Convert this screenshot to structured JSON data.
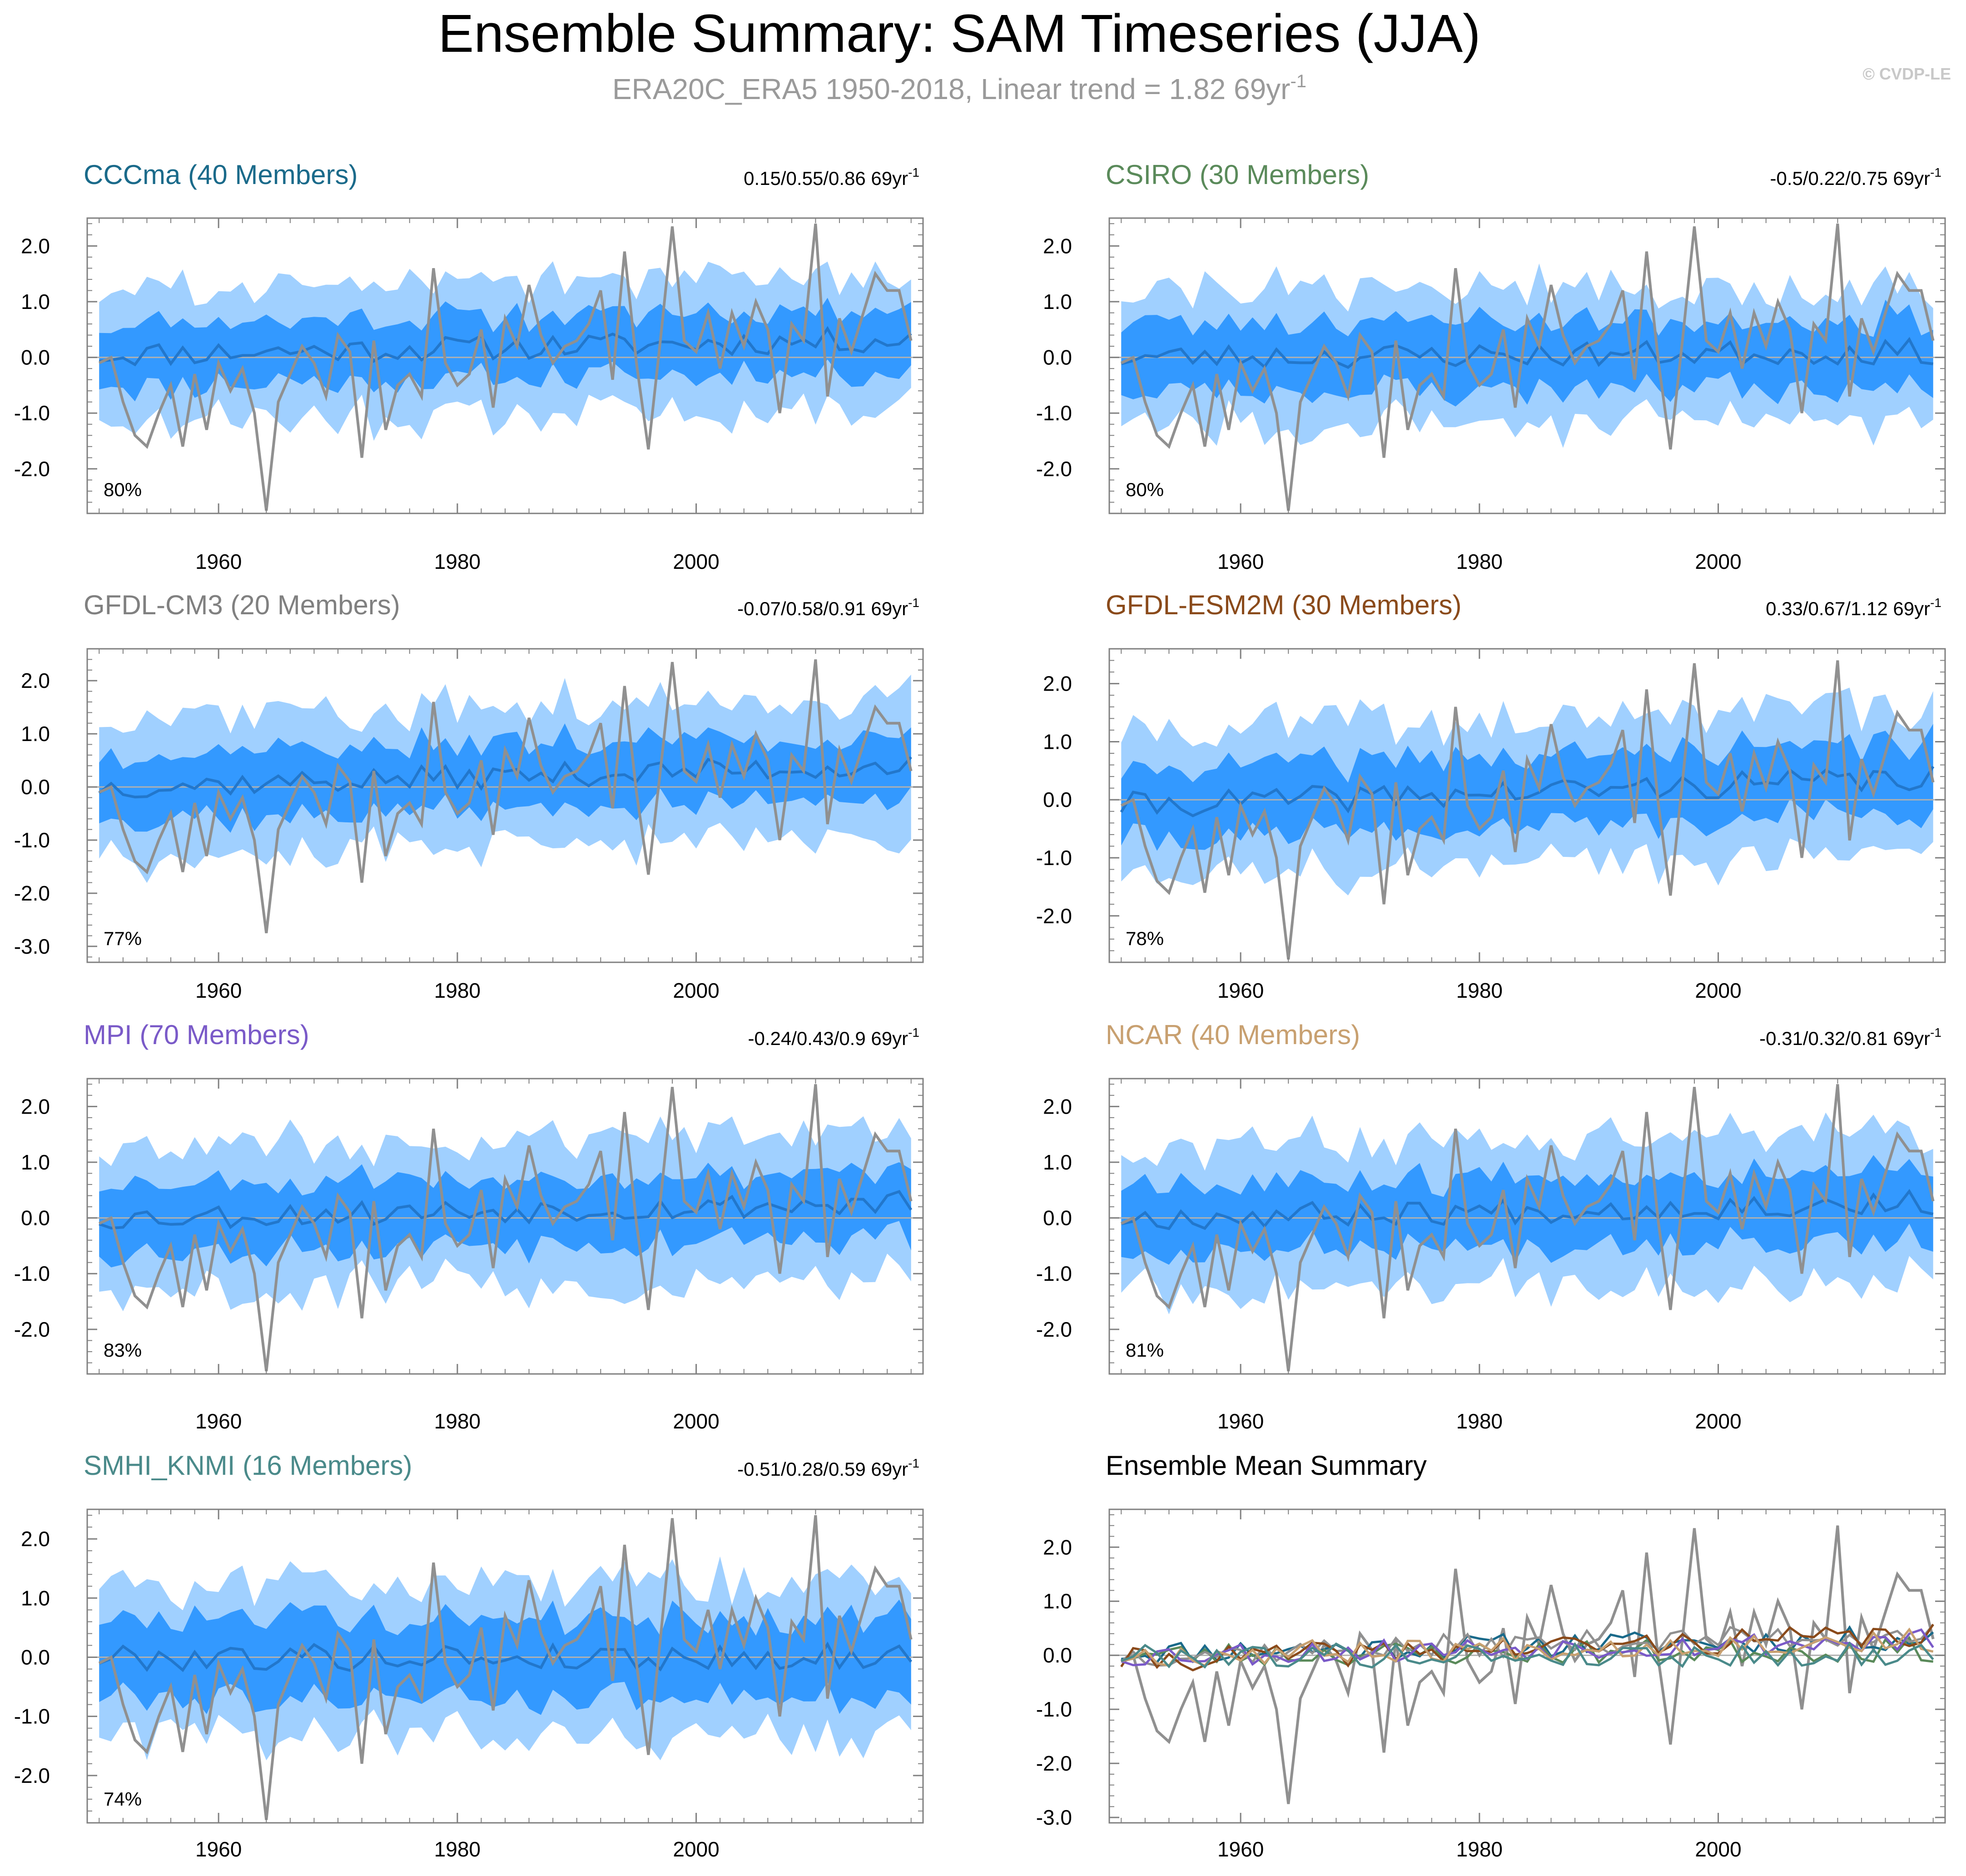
{
  "figure": {
    "title": "Ensemble Summary: SAM Timeseries (JJA)",
    "subtitle": "ERA20C_ERA5 1950-2018, Linear trend = 1.82 69yr",
    "subtitle_sup": "-1",
    "copyright": "© CVDP-LE"
  },
  "colors": {
    "outer_band": "#a0d0ff",
    "inner_band": "#3399ff",
    "ensemble_mean": "#2277cc",
    "observations": "#909090",
    "zero_line": "#b0b0b0",
    "axis": "#808080"
  },
  "chart_data": [
    {
      "type": "area",
      "id": "cccma",
      "title": "CCCma (40 Members)",
      "title_color": "#1a6a8a",
      "trend": "0.15/0.55/0.86 69yr",
      "trend_sup": "-1",
      "percent": "80%",
      "x_ticks": [
        "1960",
        "1980",
        "2000"
      ],
      "y_ticks": [
        "2.0",
        "1.0",
        "0.0",
        "-1.0",
        "-2.0"
      ],
      "ylim": [
        -2.8,
        2.5
      ],
      "xlim": [
        1949,
        2019
      ],
      "mean_offset": 0.05,
      "mean_slope": 0.004,
      "inner_half": 0.55,
      "outer_half": 1.15,
      "seed": 11
    },
    {
      "type": "area",
      "id": "csiro",
      "title": "CSIRO (30 Members)",
      "title_color": "#5a8a5a",
      "trend": "-0.5/0.22/0.75 69yr",
      "trend_sup": "-1",
      "percent": "80%",
      "x_ticks": [
        "1960",
        "1980",
        "2000"
      ],
      "y_ticks": [
        "2.0",
        "1.0",
        "0.0",
        "-1.0",
        "-2.0"
      ],
      "ylim": [
        -2.8,
        2.5
      ],
      "xlim": [
        1949,
        2019
      ],
      "mean_offset": 0.0,
      "mean_slope": 0.0015,
      "inner_half": 0.6,
      "outer_half": 1.2,
      "seed": 23
    },
    {
      "type": "area",
      "id": "gfdl-cm3",
      "title": "GFDL-CM3 (20 Members)",
      "title_color": "#808080",
      "trend": "-0.07/0.58/0.91 69yr",
      "trend_sup": "-1",
      "percent": "77%",
      "x_ticks": [
        "1960",
        "1980",
        "2000"
      ],
      "y_ticks": [
        "2.0",
        "1.0",
        "0.0",
        "-1.0",
        "-2.0",
        "-3.0"
      ],
      "ylim": [
        -3.3,
        2.6
      ],
      "xlim": [
        1949,
        2019
      ],
      "mean_offset": 0.0,
      "mean_slope": 0.006,
      "inner_half": 0.6,
      "outer_half": 1.3,
      "seed": 37
    },
    {
      "type": "area",
      "id": "gfdl-esm2m",
      "title": "GFDL-ESM2M (30 Members)",
      "title_color": "#8a4a1a",
      "trend": "0.33/0.67/1.12 69yr",
      "trend_sup": "-1",
      "percent": "78%",
      "x_ticks": [
        "1960",
        "1980",
        "2000"
      ],
      "y_ticks": [
        "2.0",
        "1.0",
        "0.0",
        "-1.0",
        "-2.0"
      ],
      "ylim": [
        -2.8,
        2.6
      ],
      "xlim": [
        1949,
        2019
      ],
      "mean_offset": -0.1,
      "mean_slope": 0.007,
      "inner_half": 0.6,
      "outer_half": 1.25,
      "seed": 41
    },
    {
      "type": "area",
      "id": "mpi",
      "title": "MPI (70 Members)",
      "title_color": "#7a5ac8",
      "trend": "-0.24/0.43/0.9 69yr",
      "trend_sup": "-1",
      "percent": "83%",
      "x_ticks": [
        "1960",
        "1980",
        "2000"
      ],
      "y_ticks": [
        "2.0",
        "1.0",
        "0.0",
        "-1.0",
        "-2.0"
      ],
      "ylim": [
        -2.8,
        2.5
      ],
      "xlim": [
        1949,
        2019
      ],
      "mean_offset": 0.0,
      "mean_slope": 0.004,
      "inner_half": 0.6,
      "outer_half": 1.25,
      "seed": 53
    },
    {
      "type": "area",
      "id": "ncar",
      "title": "NCAR (40 Members)",
      "title_color": "#c8a070",
      "trend": "-0.31/0.32/0.81 69yr",
      "trend_sup": "-1",
      "percent": "81%",
      "x_ticks": [
        "1960",
        "1980",
        "2000"
      ],
      "y_ticks": [
        "2.0",
        "1.0",
        "0.0",
        "-1.0",
        "-2.0"
      ],
      "ylim": [
        -2.8,
        2.5
      ],
      "xlim": [
        1949,
        2019
      ],
      "mean_offset": 0.0,
      "mean_slope": 0.004,
      "inner_half": 0.6,
      "outer_half": 1.25,
      "seed": 67
    },
    {
      "type": "area",
      "id": "smhi-knmi",
      "title": "SMHI_KNMI (16 Members)",
      "title_color": "#4a8a8a",
      "trend": "-0.51/0.28/0.59 69yr",
      "trend_sup": "-1",
      "percent": "74%",
      "x_ticks": [
        "1960",
        "1980",
        "2000"
      ],
      "y_ticks": [
        "2.0",
        "1.0",
        "0.0",
        "-1.0",
        "-2.0"
      ],
      "ylim": [
        -2.8,
        2.5
      ],
      "xlim": [
        1949,
        2019
      ],
      "mean_offset": 0.0,
      "mean_slope": 0.0,
      "inner_half": 0.65,
      "outer_half": 1.25,
      "seed": 79
    },
    {
      "type": "line",
      "id": "ensemble-mean-summary",
      "title": "Ensemble Mean Summary",
      "title_color": "#000000",
      "x_ticks": [
        "1960",
        "1980",
        "2000"
      ],
      "y_ticks": [
        "2.0",
        "1.0",
        "0.0",
        "-1.0",
        "-2.0",
        "-3.0"
      ],
      "ylim": [
        -3.1,
        2.7
      ],
      "xlim": [
        1949,
        2019
      ],
      "series": [
        {
          "name": "CCCma",
          "color": "#1a6a8a",
          "seed": 11,
          "offset": 0.05,
          "slope": 0.004
        },
        {
          "name": "CSIRO",
          "color": "#5a8a5a",
          "seed": 23,
          "offset": 0.0,
          "slope": 0.0015
        },
        {
          "name": "GFDL-CM3",
          "color": "#909090",
          "seed": 37,
          "offset": 0.0,
          "slope": 0.006
        },
        {
          "name": "GFDL-ESM2M",
          "color": "#8a4a1a",
          "seed": 41,
          "offset": -0.1,
          "slope": 0.007
        },
        {
          "name": "MPI",
          "color": "#7a5ac8",
          "seed": 53,
          "offset": 0.0,
          "slope": 0.004
        },
        {
          "name": "NCAR",
          "color": "#c8a070",
          "seed": 67,
          "offset": 0.0,
          "slope": 0.004
        },
        {
          "name": "SMHI_KNMI",
          "color": "#4a8a8a",
          "seed": 79,
          "offset": 0.0,
          "slope": 0.0
        }
      ]
    }
  ],
  "observations": {
    "name": "ERA20C_ERA5",
    "years": [
      1950,
      1951,
      1952,
      1953,
      1954,
      1955,
      1956,
      1957,
      1958,
      1959,
      1960,
      1961,
      1962,
      1963,
      1964,
      1965,
      1966,
      1967,
      1968,
      1969,
      1970,
      1971,
      1972,
      1973,
      1974,
      1975,
      1976,
      1977,
      1978,
      1979,
      1980,
      1981,
      1982,
      1983,
      1984,
      1985,
      1986,
      1987,
      1988,
      1989,
      1990,
      1991,
      1992,
      1993,
      1994,
      1995,
      1996,
      1997,
      1998,
      1999,
      2000,
      2001,
      2002,
      2003,
      2004,
      2005,
      2006,
      2007,
      2008,
      2009,
      2010,
      2011,
      2012,
      2013,
      2014,
      2015,
      2016,
      2017,
      2018
    ],
    "values": [
      -0.1,
      0.0,
      -0.8,
      -1.4,
      -1.6,
      -1.0,
      -0.5,
      -1.6,
      -0.3,
      -1.3,
      -0.1,
      -0.6,
      -0.2,
      -1.0,
      -2.75,
      -0.8,
      -0.3,
      0.2,
      -0.1,
      -0.7,
      0.4,
      0.1,
      -1.8,
      0.3,
      -1.3,
      -0.5,
      -0.3,
      -0.7,
      1.6,
      -0.1,
      -0.5,
      -0.3,
      0.5,
      -0.9,
      0.7,
      0.2,
      1.3,
      0.4,
      -0.1,
      0.2,
      0.3,
      0.6,
      1.2,
      -0.4,
      1.9,
      -0.1,
      -1.65,
      0.3,
      2.35,
      0.3,
      0.1,
      0.8,
      -0.2,
      0.8,
      0.2,
      1.0,
      0.5,
      -1.0,
      0.6,
      0.3,
      2.4,
      -0.7,
      0.7,
      0.1,
      0.8,
      1.5,
      1.2,
      1.2,
      0.3
    ]
  }
}
